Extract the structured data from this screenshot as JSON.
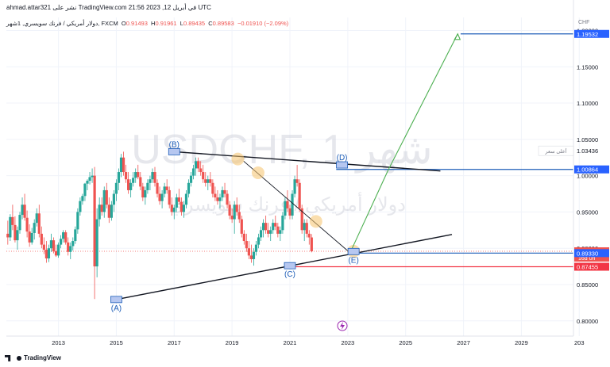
{
  "header": {
    "line1": "ahmad.attar321 نشر على TradingView.com في أبريل 12, 2023 21:56 UTC",
    "symbol_line": "دولار أمريكي / فرنك سويسري, 1شهر, FXCM",
    "open_label": "O",
    "open": "0.91493",
    "high_label": "H",
    "high": "0.91961",
    "low_label": "L",
    "low": "0.89435",
    "close_label": "C",
    "close": "0.89583",
    "change": "−0.01910 (−2.09%)"
  },
  "watermark": {
    "symbol": "USDCHF, 1 شهر",
    "name": "دولار أمريكي / فرنك سويسري"
  },
  "footer": {
    "brand": "TradingView"
  },
  "colors": {
    "up": "#26a69a",
    "down": "#ef5350",
    "target": "#2962ff",
    "blue_line": "#1e5eb8",
    "red_line": "#f23645",
    "green_arrow": "#4caf50",
    "trendline": "#131722",
    "highlight": "#f5c26b",
    "wave_label": "#1e5eb8"
  },
  "chart_data": {
    "type": "candlestick",
    "title": "USDCHF, 1 شهر",
    "y_axis_unit": "CHF",
    "x_ticks": [
      "2013",
      "2015",
      "2017",
      "2019",
      "2021",
      "2023",
      "2025",
      "2027",
      "2029",
      "203"
    ],
    "y_ticks": [
      "1.20000",
      "1.15000",
      "1.10000",
      "1.05000",
      "1.00000",
      "0.95000",
      "0.90000",
      "0.85000",
      "0.80000"
    ],
    "ylim": [
      0.779,
      1.218
    ],
    "xlim": [
      2011.2,
      2030.8
    ],
    "price_labels": [
      {
        "value": 1.19532,
        "text": "1.19532",
        "color": "#2962ff"
      },
      {
        "value": 1.00864,
        "text": "1.00864",
        "color": "#2962ff"
      },
      {
        "value": 1.03436,
        "text": "1.03436",
        "color": "#ffffff",
        "note": "أعلى سعر"
      },
      {
        "value": 0.89583,
        "text": "0.89583",
        "color": "#ef5350",
        "sub": "16d 0h"
      },
      {
        "value": 0.8933,
        "text": "0.89330",
        "color": "#2962ff"
      },
      {
        "value": 0.87455,
        "text": "0.87455",
        "color": "#f23645"
      }
    ],
    "wave_points": [
      {
        "label": "(A)",
        "x": 2015.0,
        "y": 0.8294
      },
      {
        "label": "(B)",
        "x": 2017.0,
        "y": 1.033
      },
      {
        "label": "(C)",
        "x": 2021.0,
        "y": 0.876
      },
      {
        "label": "(D)",
        "x": 2022.8,
        "y": 1.0148
      },
      {
        "label": "(E)",
        "x": 2023.2,
        "y": 0.8955
      }
    ],
    "upper_trendline": [
      [
        2017.0,
        1.033
      ],
      [
        2026.2,
        1.0065
      ]
    ],
    "lower_trendline": [
      [
        2015.0,
        0.8294
      ],
      [
        2026.6,
        0.919
      ]
    ],
    "diagonal_line": [
      [
        2019.4,
        1.02
      ],
      [
        2023.1,
        0.893
      ]
    ],
    "target_arrow": [
      [
        2023.1,
        0.8955
      ],
      [
        2024.4,
        1.008
      ],
      [
        2026.8,
        1.1953
      ]
    ],
    "target_level": {
      "value": 1.19532,
      "from": 2026.9
    },
    "resistance_level": {
      "value": 1.00864,
      "from": 2022.6
    },
    "support_level": {
      "value": 0.87455,
      "from": 2021.0
    },
    "current_level": {
      "value": 0.89583
    },
    "highlights": [
      {
        "x": 2019.2,
        "y": 1.023
      },
      {
        "x": 2019.9,
        "y": 1.004
      },
      {
        "x": 2021.9,
        "y": 0.937
      },
      {
        "x": 2023.2,
        "y": 0.896
      }
    ],
    "candles": [
      {
        "o": 0.92,
        "h": 0.938,
        "l": 0.905,
        "c": 0.915
      },
      {
        "o": 0.915,
        "h": 0.947,
        "l": 0.91,
        "c": 0.943
      },
      {
        "o": 0.943,
        "h": 0.96,
        "l": 0.925,
        "c": 0.932
      },
      {
        "o": 0.932,
        "h": 0.944,
        "l": 0.908,
        "c": 0.911
      },
      {
        "o": 0.911,
        "h": 0.93,
        "l": 0.898,
        "c": 0.925
      },
      {
        "o": 0.925,
        "h": 0.95,
        "l": 0.92,
        "c": 0.946
      },
      {
        "o": 0.946,
        "h": 0.97,
        "l": 0.94,
        "c": 0.96
      },
      {
        "o": 0.96,
        "h": 0.975,
        "l": 0.938,
        "c": 0.942
      },
      {
        "o": 0.942,
        "h": 0.952,
        "l": 0.915,
        "c": 0.923
      },
      {
        "o": 0.923,
        "h": 0.933,
        "l": 0.902,
        "c": 0.908
      },
      {
        "o": 0.908,
        "h": 0.928,
        "l": 0.905,
        "c": 0.921
      },
      {
        "o": 0.921,
        "h": 0.94,
        "l": 0.912,
        "c": 0.935
      },
      {
        "o": 0.935,
        "h": 0.955,
        "l": 0.93,
        "c": 0.948
      },
      {
        "o": 0.948,
        "h": 0.96,
        "l": 0.915,
        "c": 0.92
      },
      {
        "o": 0.92,
        "h": 0.93,
        "l": 0.9,
        "c": 0.905
      },
      {
        "o": 0.905,
        "h": 0.915,
        "l": 0.892,
        "c": 0.898
      },
      {
        "o": 0.898,
        "h": 0.91,
        "l": 0.88,
        "c": 0.886
      },
      {
        "o": 0.886,
        "h": 0.905,
        "l": 0.881,
        "c": 0.9
      },
      {
        "o": 0.9,
        "h": 0.92,
        "l": 0.895,
        "c": 0.911
      },
      {
        "o": 0.911,
        "h": 0.915,
        "l": 0.893,
        "c": 0.896
      },
      {
        "o": 0.896,
        "h": 0.905,
        "l": 0.888,
        "c": 0.89
      },
      {
        "o": 0.89,
        "h": 0.908,
        "l": 0.887,
        "c": 0.905
      },
      {
        "o": 0.905,
        "h": 0.918,
        "l": 0.9,
        "c": 0.913
      },
      {
        "o": 0.913,
        "h": 0.925,
        "l": 0.908,
        "c": 0.922
      },
      {
        "o": 0.922,
        "h": 0.925,
        "l": 0.905,
        "c": 0.908
      },
      {
        "o": 0.908,
        "h": 0.915,
        "l": 0.89,
        "c": 0.895
      },
      {
        "o": 0.895,
        "h": 0.908,
        "l": 0.885,
        "c": 0.903
      },
      {
        "o": 0.903,
        "h": 0.915,
        "l": 0.897,
        "c": 0.91
      },
      {
        "o": 0.91,
        "h": 0.93,
        "l": 0.906,
        "c": 0.926
      },
      {
        "o": 0.926,
        "h": 0.955,
        "l": 0.92,
        "c": 0.95
      },
      {
        "o": 0.95,
        "h": 0.97,
        "l": 0.945,
        "c": 0.965
      },
      {
        "o": 0.965,
        "h": 0.975,
        "l": 0.96,
        "c": 0.972
      },
      {
        "o": 0.972,
        "h": 0.99,
        "l": 0.965,
        "c": 0.989
      },
      {
        "o": 0.989,
        "h": 0.995,
        "l": 0.98,
        "c": 0.993
      },
      {
        "o": 0.993,
        "h": 1.005,
        "l": 0.988,
        "c": 0.998
      },
      {
        "o": 0.998,
        "h": 1.01,
        "l": 0.99,
        "c": 1.0
      },
      {
        "o": 1.0,
        "h": 1.012,
        "l": 0.83,
        "c": 0.875
      },
      {
        "o": 0.875,
        "h": 0.955,
        "l": 0.86,
        "c": 0.94
      },
      {
        "o": 0.94,
        "h": 0.97,
        "l": 0.93,
        "c": 0.96
      },
      {
        "o": 0.96,
        "h": 0.97,
        "l": 0.945,
        "c": 0.95
      },
      {
        "o": 0.95,
        "h": 0.985,
        "l": 0.942,
        "c": 0.98
      },
      {
        "o": 0.98,
        "h": 0.99,
        "l": 0.955,
        "c": 0.96
      },
      {
        "o": 0.96,
        "h": 0.97,
        "l": 0.935,
        "c": 0.942
      },
      {
        "o": 0.942,
        "h": 0.965,
        "l": 0.938,
        "c": 0.96
      },
      {
        "o": 0.96,
        "h": 0.98,
        "l": 0.95,
        "c": 0.975
      },
      {
        "o": 0.975,
        "h": 0.995,
        "l": 0.965,
        "c": 0.99
      },
      {
        "o": 0.99,
        "h": 1.01,
        "l": 0.98,
        "c": 1.005
      },
      {
        "o": 1.005,
        "h": 1.03,
        "l": 0.998,
        "c": 1.025
      },
      {
        "o": 1.025,
        "h": 1.033,
        "l": 1.0,
        "c": 1.005
      },
      {
        "o": 1.005,
        "h": 1.015,
        "l": 0.99,
        "c": 0.995
      },
      {
        "o": 0.995,
        "h": 1.005,
        "l": 0.975,
        "c": 0.98
      },
      {
        "o": 0.98,
        "h": 0.995,
        "l": 0.97,
        "c": 0.99
      },
      {
        "o": 0.99,
        "h": 1.005,
        "l": 0.985,
        "c": 0.997
      },
      {
        "o": 0.997,
        "h": 1.01,
        "l": 0.99,
        "c": 1.005
      },
      {
        "o": 1.005,
        "h": 1.015,
        "l": 0.995,
        "c": 0.998
      },
      {
        "o": 0.998,
        "h": 1.005,
        "l": 0.98,
        "c": 0.985
      },
      {
        "o": 0.985,
        "h": 0.99,
        "l": 0.965,
        "c": 0.97
      },
      {
        "o": 0.97,
        "h": 0.985,
        "l": 0.96,
        "c": 0.98
      },
      {
        "o": 0.98,
        "h": 0.995,
        "l": 0.975,
        "c": 0.99
      },
      {
        "o": 0.99,
        "h": 1.0,
        "l": 0.98,
        "c": 0.995
      },
      {
        "o": 0.995,
        "h": 1.01,
        "l": 0.99,
        "c": 1.005
      },
      {
        "o": 1.005,
        "h": 1.012,
        "l": 0.985,
        "c": 0.99
      },
      {
        "o": 0.99,
        "h": 0.995,
        "l": 0.97,
        "c": 0.975
      },
      {
        "o": 0.975,
        "h": 0.985,
        "l": 0.96,
        "c": 0.965
      },
      {
        "o": 0.965,
        "h": 0.98,
        "l": 0.955,
        "c": 0.975
      },
      {
        "o": 0.975,
        "h": 0.99,
        "l": 0.97,
        "c": 0.985
      },
      {
        "o": 0.985,
        "h": 0.995,
        "l": 0.975,
        "c": 0.98
      },
      {
        "o": 0.98,
        "h": 0.985,
        "l": 0.955,
        "c": 0.96
      },
      {
        "o": 0.96,
        "h": 0.97,
        "l": 0.945,
        "c": 0.95
      },
      {
        "o": 0.95,
        "h": 0.96,
        "l": 0.94,
        "c": 0.956
      },
      {
        "o": 0.956,
        "h": 0.975,
        "l": 0.95,
        "c": 0.97
      },
      {
        "o": 0.97,
        "h": 0.982,
        "l": 0.96,
        "c": 0.964
      },
      {
        "o": 0.964,
        "h": 0.97,
        "l": 0.945,
        "c": 0.95
      },
      {
        "o": 0.95,
        "h": 0.965,
        "l": 0.942,
        "c": 0.96
      },
      {
        "o": 0.96,
        "h": 0.98,
        "l": 0.955,
        "c": 0.975
      },
      {
        "o": 0.975,
        "h": 0.995,
        "l": 0.97,
        "c": 0.99
      },
      {
        "o": 0.99,
        "h": 1.005,
        "l": 0.985,
        "c": 1.0
      },
      {
        "o": 1.0,
        "h": 1.015,
        "l": 0.995,
        "c": 1.01
      },
      {
        "o": 1.01,
        "h": 1.025,
        "l": 1.0,
        "c": 1.02
      },
      {
        "o": 1.02,
        "h": 1.025,
        "l": 1.005,
        "c": 1.01
      },
      {
        "o": 1.01,
        "h": 1.02,
        "l": 1.0,
        "c": 1.005
      },
      {
        "o": 1.005,
        "h": 1.015,
        "l": 0.99,
        "c": 0.995
      },
      {
        "o": 0.995,
        "h": 1.005,
        "l": 0.985,
        "c": 0.99
      },
      {
        "o": 0.99,
        "h": 1.0,
        "l": 0.98,
        "c": 0.995
      },
      {
        "o": 0.995,
        "h": 1.005,
        "l": 0.985,
        "c": 0.99
      },
      {
        "o": 0.99,
        "h": 0.995,
        "l": 0.97,
        "c": 0.975
      },
      {
        "o": 0.975,
        "h": 0.985,
        "l": 0.965,
        "c": 0.97
      },
      {
        "o": 0.97,
        "h": 0.98,
        "l": 0.96,
        "c": 0.965
      },
      {
        "o": 0.965,
        "h": 0.975,
        "l": 0.955,
        "c": 0.97
      },
      {
        "o": 0.97,
        "h": 0.985,
        "l": 0.965,
        "c": 0.98
      },
      {
        "o": 0.98,
        "h": 0.99,
        "l": 0.97,
        "c": 0.975
      },
      {
        "o": 0.975,
        "h": 0.98,
        "l": 0.955,
        "c": 0.96
      },
      {
        "o": 0.96,
        "h": 0.965,
        "l": 0.94,
        "c": 0.945
      },
      {
        "o": 0.945,
        "h": 0.955,
        "l": 0.935,
        "c": 0.94
      },
      {
        "o": 0.94,
        "h": 0.965,
        "l": 0.92,
        "c": 0.96
      },
      {
        "o": 0.96,
        "h": 0.97,
        "l": 0.945,
        "c": 0.95
      },
      {
        "o": 0.95,
        "h": 0.96,
        "l": 0.935,
        "c": 0.94
      },
      {
        "o": 0.94,
        "h": 0.945,
        "l": 0.915,
        "c": 0.92
      },
      {
        "o": 0.92,
        "h": 0.925,
        "l": 0.905,
        "c": 0.91
      },
      {
        "o": 0.91,
        "h": 0.92,
        "l": 0.895,
        "c": 0.9
      },
      {
        "o": 0.9,
        "h": 0.91,
        "l": 0.885,
        "c": 0.89
      },
      {
        "o": 0.89,
        "h": 0.905,
        "l": 0.88,
        "c": 0.885
      },
      {
        "o": 0.885,
        "h": 0.9,
        "l": 0.876,
        "c": 0.895
      },
      {
        "o": 0.895,
        "h": 0.91,
        "l": 0.89,
        "c": 0.905
      },
      {
        "o": 0.905,
        "h": 0.92,
        "l": 0.9,
        "c": 0.915
      },
      {
        "o": 0.915,
        "h": 0.93,
        "l": 0.91,
        "c": 0.925
      },
      {
        "o": 0.925,
        "h": 0.94,
        "l": 0.915,
        "c": 0.935
      },
      {
        "o": 0.935,
        "h": 0.945,
        "l": 0.92,
        "c": 0.925
      },
      {
        "o": 0.925,
        "h": 0.935,
        "l": 0.915,
        "c": 0.92
      },
      {
        "o": 0.92,
        "h": 0.93,
        "l": 0.91,
        "c": 0.925
      },
      {
        "o": 0.925,
        "h": 0.94,
        "l": 0.92,
        "c": 0.935
      },
      {
        "o": 0.935,
        "h": 0.945,
        "l": 0.925,
        "c": 0.93
      },
      {
        "o": 0.93,
        "h": 0.935,
        "l": 0.915,
        "c": 0.92
      },
      {
        "o": 0.92,
        "h": 0.93,
        "l": 0.91,
        "c": 0.925
      },
      {
        "o": 0.925,
        "h": 0.95,
        "l": 0.92,
        "c": 0.945
      },
      {
        "o": 0.945,
        "h": 0.97,
        "l": 0.94,
        "c": 0.965
      },
      {
        "o": 0.965,
        "h": 0.98,
        "l": 0.95,
        "c": 0.955
      },
      {
        "o": 0.955,
        "h": 0.96,
        "l": 0.94,
        "c": 0.945
      },
      {
        "o": 0.945,
        "h": 0.98,
        "l": 0.94,
        "c": 0.975
      },
      {
        "o": 0.975,
        "h": 1.0,
        "l": 0.97,
        "c": 0.995
      },
      {
        "o": 0.995,
        "h": 1.0148,
        "l": 0.985,
        "c": 0.99
      },
      {
        "o": 0.99,
        "h": 0.995,
        "l": 0.95,
        "c": 0.955
      },
      {
        "o": 0.955,
        "h": 0.96,
        "l": 0.92,
        "c": 0.925
      },
      {
        "o": 0.925,
        "h": 0.94,
        "l": 0.91,
        "c": 0.935
      },
      {
        "o": 0.935,
        "h": 0.94,
        "l": 0.915,
        "c": 0.92
      },
      {
        "o": 0.92,
        "h": 0.925,
        "l": 0.905,
        "c": 0.9149
      },
      {
        "o": 0.9149,
        "h": 0.9196,
        "l": 0.8944,
        "c": 0.8958
      }
    ]
  }
}
